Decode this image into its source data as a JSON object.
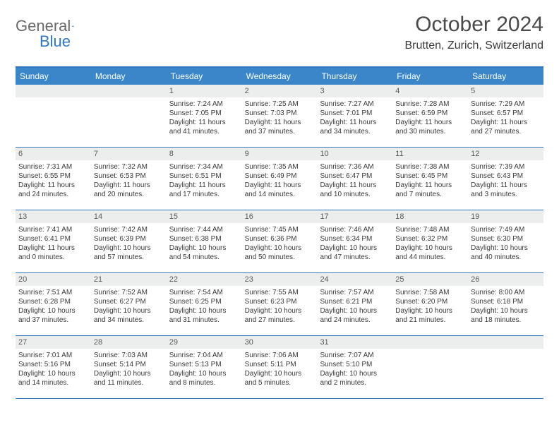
{
  "logo": {
    "general": "General",
    "blue": "Blue"
  },
  "title": "October 2024",
  "location": "Brutten, Zurich, Switzerland",
  "header_bg": "#3a86c8",
  "accent": "#2f78bf",
  "weekdays": [
    "Sunday",
    "Monday",
    "Tuesday",
    "Wednesday",
    "Thursday",
    "Friday",
    "Saturday"
  ],
  "weeks": [
    [
      {
        "num": "",
        "lines": []
      },
      {
        "num": "",
        "lines": []
      },
      {
        "num": "1",
        "lines": [
          "Sunrise: 7:24 AM",
          "Sunset: 7:05 PM",
          "Daylight: 11 hours and 41 minutes."
        ]
      },
      {
        "num": "2",
        "lines": [
          "Sunrise: 7:25 AM",
          "Sunset: 7:03 PM",
          "Daylight: 11 hours and 37 minutes."
        ]
      },
      {
        "num": "3",
        "lines": [
          "Sunrise: 7:27 AM",
          "Sunset: 7:01 PM",
          "Daylight: 11 hours and 34 minutes."
        ]
      },
      {
        "num": "4",
        "lines": [
          "Sunrise: 7:28 AM",
          "Sunset: 6:59 PM",
          "Daylight: 11 hours and 30 minutes."
        ]
      },
      {
        "num": "5",
        "lines": [
          "Sunrise: 7:29 AM",
          "Sunset: 6:57 PM",
          "Daylight: 11 hours and 27 minutes."
        ]
      }
    ],
    [
      {
        "num": "6",
        "lines": [
          "Sunrise: 7:31 AM",
          "Sunset: 6:55 PM",
          "Daylight: 11 hours and 24 minutes."
        ]
      },
      {
        "num": "7",
        "lines": [
          "Sunrise: 7:32 AM",
          "Sunset: 6:53 PM",
          "Daylight: 11 hours and 20 minutes."
        ]
      },
      {
        "num": "8",
        "lines": [
          "Sunrise: 7:34 AM",
          "Sunset: 6:51 PM",
          "Daylight: 11 hours and 17 minutes."
        ]
      },
      {
        "num": "9",
        "lines": [
          "Sunrise: 7:35 AM",
          "Sunset: 6:49 PM",
          "Daylight: 11 hours and 14 minutes."
        ]
      },
      {
        "num": "10",
        "lines": [
          "Sunrise: 7:36 AM",
          "Sunset: 6:47 PM",
          "Daylight: 11 hours and 10 minutes."
        ]
      },
      {
        "num": "11",
        "lines": [
          "Sunrise: 7:38 AM",
          "Sunset: 6:45 PM",
          "Daylight: 11 hours and 7 minutes."
        ]
      },
      {
        "num": "12",
        "lines": [
          "Sunrise: 7:39 AM",
          "Sunset: 6:43 PM",
          "Daylight: 11 hours and 3 minutes."
        ]
      }
    ],
    [
      {
        "num": "13",
        "lines": [
          "Sunrise: 7:41 AM",
          "Sunset: 6:41 PM",
          "Daylight: 11 hours and 0 minutes."
        ]
      },
      {
        "num": "14",
        "lines": [
          "Sunrise: 7:42 AM",
          "Sunset: 6:39 PM",
          "Daylight: 10 hours and 57 minutes."
        ]
      },
      {
        "num": "15",
        "lines": [
          "Sunrise: 7:44 AM",
          "Sunset: 6:38 PM",
          "Daylight: 10 hours and 54 minutes."
        ]
      },
      {
        "num": "16",
        "lines": [
          "Sunrise: 7:45 AM",
          "Sunset: 6:36 PM",
          "Daylight: 10 hours and 50 minutes."
        ]
      },
      {
        "num": "17",
        "lines": [
          "Sunrise: 7:46 AM",
          "Sunset: 6:34 PM",
          "Daylight: 10 hours and 47 minutes."
        ]
      },
      {
        "num": "18",
        "lines": [
          "Sunrise: 7:48 AM",
          "Sunset: 6:32 PM",
          "Daylight: 10 hours and 44 minutes."
        ]
      },
      {
        "num": "19",
        "lines": [
          "Sunrise: 7:49 AM",
          "Sunset: 6:30 PM",
          "Daylight: 10 hours and 40 minutes."
        ]
      }
    ],
    [
      {
        "num": "20",
        "lines": [
          "Sunrise: 7:51 AM",
          "Sunset: 6:28 PM",
          "Daylight: 10 hours and 37 minutes."
        ]
      },
      {
        "num": "21",
        "lines": [
          "Sunrise: 7:52 AM",
          "Sunset: 6:27 PM",
          "Daylight: 10 hours and 34 minutes."
        ]
      },
      {
        "num": "22",
        "lines": [
          "Sunrise: 7:54 AM",
          "Sunset: 6:25 PM",
          "Daylight: 10 hours and 31 minutes."
        ]
      },
      {
        "num": "23",
        "lines": [
          "Sunrise: 7:55 AM",
          "Sunset: 6:23 PM",
          "Daylight: 10 hours and 27 minutes."
        ]
      },
      {
        "num": "24",
        "lines": [
          "Sunrise: 7:57 AM",
          "Sunset: 6:21 PM",
          "Daylight: 10 hours and 24 minutes."
        ]
      },
      {
        "num": "25",
        "lines": [
          "Sunrise: 7:58 AM",
          "Sunset: 6:20 PM",
          "Daylight: 10 hours and 21 minutes."
        ]
      },
      {
        "num": "26",
        "lines": [
          "Sunrise: 8:00 AM",
          "Sunset: 6:18 PM",
          "Daylight: 10 hours and 18 minutes."
        ]
      }
    ],
    [
      {
        "num": "27",
        "lines": [
          "Sunrise: 7:01 AM",
          "Sunset: 5:16 PM",
          "Daylight: 10 hours and 14 minutes."
        ]
      },
      {
        "num": "28",
        "lines": [
          "Sunrise: 7:03 AM",
          "Sunset: 5:14 PM",
          "Daylight: 10 hours and 11 minutes."
        ]
      },
      {
        "num": "29",
        "lines": [
          "Sunrise: 7:04 AM",
          "Sunset: 5:13 PM",
          "Daylight: 10 hours and 8 minutes."
        ]
      },
      {
        "num": "30",
        "lines": [
          "Sunrise: 7:06 AM",
          "Sunset: 5:11 PM",
          "Daylight: 10 hours and 5 minutes."
        ]
      },
      {
        "num": "31",
        "lines": [
          "Sunrise: 7:07 AM",
          "Sunset: 5:10 PM",
          "Daylight: 10 hours and 2 minutes."
        ]
      },
      {
        "num": "",
        "lines": []
      },
      {
        "num": "",
        "lines": []
      }
    ]
  ]
}
